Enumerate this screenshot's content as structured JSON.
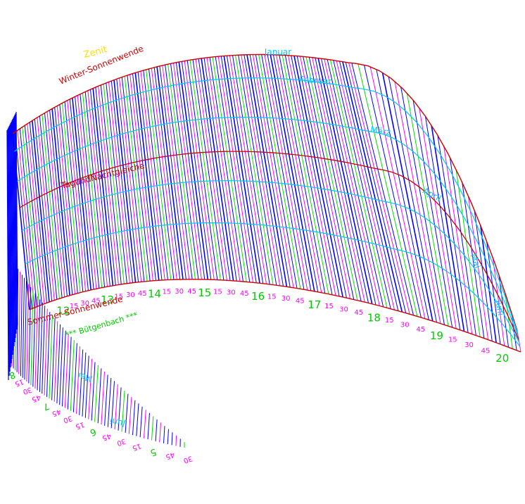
{
  "colors": {
    "background": "#ffffff",
    "hour_line": "#0000ff",
    "quarter_line": "#ff00ff",
    "half_line": "#00dd00",
    "month_curve": "#00c8ff",
    "solstice_curve": "#cc0000",
    "zenith_label": "#ffdd00",
    "credit_label": "#00cc00",
    "hour_label": "#00cc00",
    "minute_label": "#ff00ff"
  },
  "labels": {
    "zenith": "Zenit",
    "winter_solstice": "Winter-Sonnenwende",
    "equinox": "TagundNachtgleiche",
    "summer_solstice": "Sommer-Sonnenwende",
    "credit": "*** Bütgenbach ***"
  },
  "months_top": [
    "Januar",
    "Februar",
    "März",
    "April",
    "Mai",
    "Juni"
  ],
  "months_bottom": [
    "Mai",
    "Juni"
  ],
  "scale_main": [
    {
      "text": "12",
      "type": "hour"
    },
    {
      "text": "15",
      "type": "min"
    },
    {
      "text": "30",
      "type": "min"
    },
    {
      "text": "45",
      "type": "min"
    },
    {
      "text": "13",
      "type": "hour"
    },
    {
      "text": "15",
      "type": "min"
    },
    {
      "text": "30",
      "type": "min"
    },
    {
      "text": "45",
      "type": "min"
    },
    {
      "text": "14",
      "type": "hour"
    },
    {
      "text": "15",
      "type": "min"
    },
    {
      "text": "30",
      "type": "min"
    },
    {
      "text": "45",
      "type": "min"
    },
    {
      "text": "15",
      "type": "hour"
    },
    {
      "text": "15",
      "type": "min"
    },
    {
      "text": "30",
      "type": "min"
    },
    {
      "text": "45",
      "type": "min"
    },
    {
      "text": "16",
      "type": "hour"
    },
    {
      "text": "15",
      "type": "min"
    },
    {
      "text": "30",
      "type": "min"
    },
    {
      "text": "45",
      "type": "min"
    },
    {
      "text": "17",
      "type": "hour"
    },
    {
      "text": "15",
      "type": "min"
    },
    {
      "text": "30",
      "type": "min"
    },
    {
      "text": "45",
      "type": "min"
    },
    {
      "text": "18",
      "type": "hour"
    },
    {
      "text": "15",
      "type": "min"
    },
    {
      "text": "30",
      "type": "min"
    },
    {
      "text": "45",
      "type": "min"
    },
    {
      "text": "19",
      "type": "hour"
    },
    {
      "text": "15",
      "type": "min"
    },
    {
      "text": "30",
      "type": "min"
    },
    {
      "text": "45",
      "type": "min"
    },
    {
      "text": "20",
      "type": "hour"
    }
  ],
  "scale_lower": [
    {
      "text": "8",
      "type": "hour"
    },
    {
      "text": "15",
      "type": "min"
    },
    {
      "text": "30",
      "type": "min"
    },
    {
      "text": "45",
      "type": "min"
    },
    {
      "text": "7",
      "type": "hour"
    },
    {
      "text": "45",
      "type": "min"
    },
    {
      "text": "30",
      "type": "min"
    },
    {
      "text": "15",
      "type": "min"
    },
    {
      "text": "6",
      "type": "hour"
    },
    {
      "text": "45",
      "type": "min"
    },
    {
      "text": "30",
      "type": "min"
    },
    {
      "text": "15",
      "type": "min"
    },
    {
      "text": "5",
      "type": "hour"
    },
    {
      "text": "45",
      "type": "min"
    },
    {
      "text": "30",
      "type": "min"
    }
  ]
}
